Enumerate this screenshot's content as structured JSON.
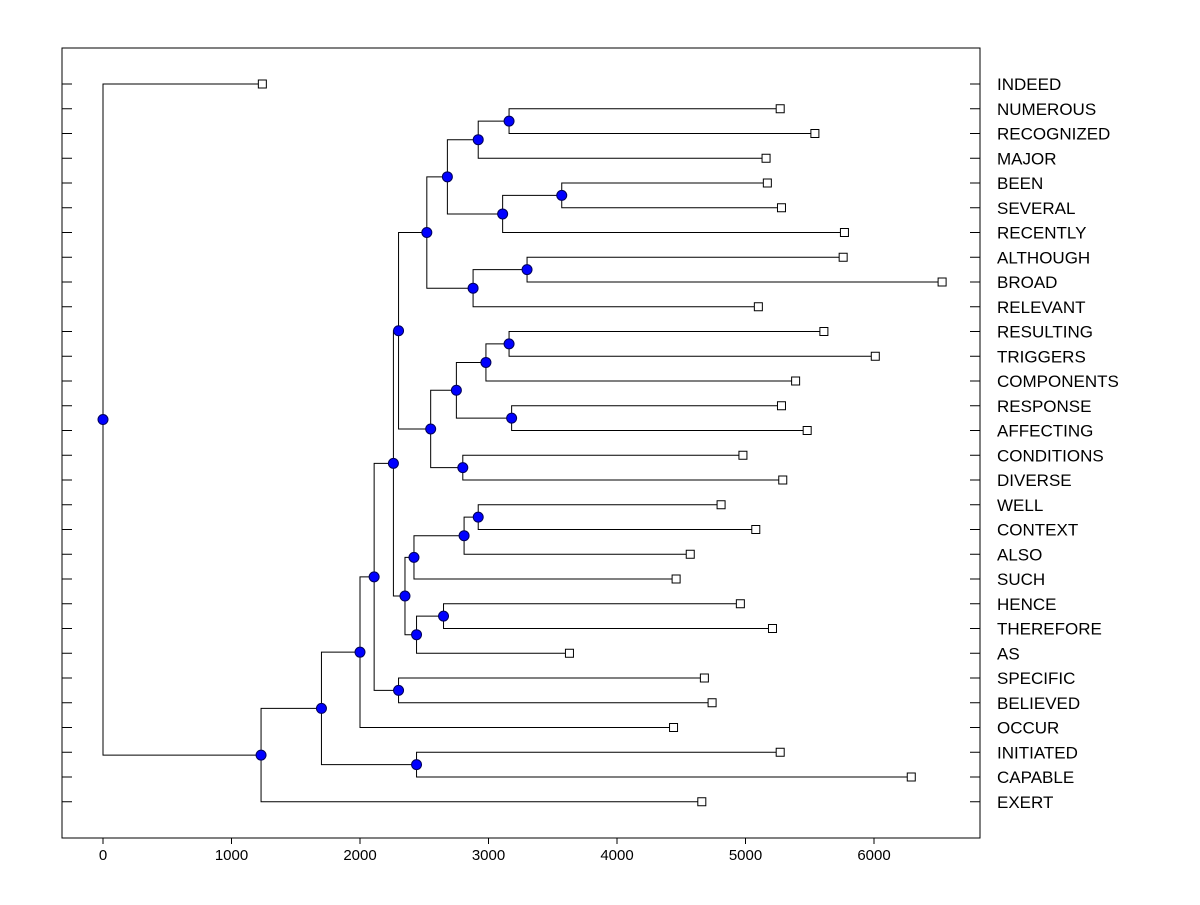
{
  "chart_data": {
    "type": "dendrogram",
    "orientation": "horizontal",
    "x_axis": {
      "ticks": [
        0,
        1000,
        2000,
        3000,
        4000,
        5000,
        6000
      ],
      "tick_labels": [
        "0",
        "1000",
        "2000",
        "3000",
        "4000",
        "5000",
        "6000"
      ],
      "range": [
        -320,
        6850
      ]
    },
    "leaves": [
      {
        "label": "INDEED",
        "x": 1240
      },
      {
        "label": "NUMEROUS",
        "x": 5270
      },
      {
        "label": "RECOGNIZED",
        "x": 5540
      },
      {
        "label": "MAJOR",
        "x": 5160
      },
      {
        "label": "BEEN",
        "x": 5170
      },
      {
        "label": "SEVERAL",
        "x": 5280
      },
      {
        "label": "RECENTLY",
        "x": 5770
      },
      {
        "label": "ALTHOUGH",
        "x": 5760
      },
      {
        "label": "BROAD",
        "x": 6530
      },
      {
        "label": "RELEVANT",
        "x": 5100
      },
      {
        "label": "RESULTING",
        "x": 5610
      },
      {
        "label": "TRIGGERS",
        "x": 6010
      },
      {
        "label": "COMPONENTS",
        "x": 5390
      },
      {
        "label": "RESPONSE",
        "x": 5280
      },
      {
        "label": "AFFECTING",
        "x": 5480
      },
      {
        "label": "CONDITIONS",
        "x": 4980
      },
      {
        "label": "DIVERSE",
        "x": 5290
      },
      {
        "label": "WELL",
        "x": 4810
      },
      {
        "label": "CONTEXT",
        "x": 5080
      },
      {
        "label": "ALSO",
        "x": 4570
      },
      {
        "label": "SUCH",
        "x": 4460
      },
      {
        "label": "HENCE",
        "x": 4960
      },
      {
        "label": "THEREFORE",
        "x": 5210
      },
      {
        "label": "AS",
        "x": 3630
      },
      {
        "label": "SPECIFIC",
        "x": 4680
      },
      {
        "label": "BELIEVED",
        "x": 4740
      },
      {
        "label": "OCCUR",
        "x": 4440
      },
      {
        "label": "INITIATED",
        "x": 5270
      },
      {
        "label": "CAPABLE",
        "x": 6290
      },
      {
        "label": "EXERT",
        "x": 4660
      }
    ],
    "merges": [
      {
        "a": 1,
        "b": 2,
        "x": 3160
      },
      {
        "a": 30,
        "b": 3,
        "x": 2920
      },
      {
        "a": 4,
        "b": 5,
        "x": 3570
      },
      {
        "a": 32,
        "b": 6,
        "x": 3110
      },
      {
        "a": 31,
        "b": 33,
        "x": 2680
      },
      {
        "a": 7,
        "b": 8,
        "x": 3300
      },
      {
        "a": 35,
        "b": 9,
        "x": 2880
      },
      {
        "a": 34,
        "b": 36,
        "x": 2520
      },
      {
        "a": 10,
        "b": 11,
        "x": 3160
      },
      {
        "a": 38,
        "b": 12,
        "x": 2980
      },
      {
        "a": 13,
        "b": 14,
        "x": 3180
      },
      {
        "a": 39,
        "b": 40,
        "x": 2750
      },
      {
        "a": 15,
        "b": 16,
        "x": 2800
      },
      {
        "a": 41,
        "b": 42,
        "x": 2550
      },
      {
        "a": 37,
        "b": 43,
        "x": 2300
      },
      {
        "a": 17,
        "b": 18,
        "x": 2920
      },
      {
        "a": 45,
        "b": 19,
        "x": 2810
      },
      {
        "a": 46,
        "b": 20,
        "x": 2420
      },
      {
        "a": 21,
        "b": 22,
        "x": 2650
      },
      {
        "a": 48,
        "b": 23,
        "x": 2440
      },
      {
        "a": 47,
        "b": 49,
        "x": 2350
      },
      {
        "a": 44,
        "b": 50,
        "x": 2260
      },
      {
        "a": 24,
        "b": 25,
        "x": 2300
      },
      {
        "a": 51,
        "b": 52,
        "x": 2110
      },
      {
        "a": 53,
        "b": 26,
        "x": 2000
      },
      {
        "a": 27,
        "b": 28,
        "x": 2440
      },
      {
        "a": 54,
        "b": 55,
        "x": 1700
      },
      {
        "a": 56,
        "b": 29,
        "x": 1230
      },
      {
        "a": 0,
        "b": 57,
        "x": 0
      }
    ],
    "colors": {
      "merge_node_fill": "#0000ff",
      "merge_node_stroke": "#00005a",
      "leaf_marker_fill": "#ffffff",
      "line": "#000000"
    }
  }
}
